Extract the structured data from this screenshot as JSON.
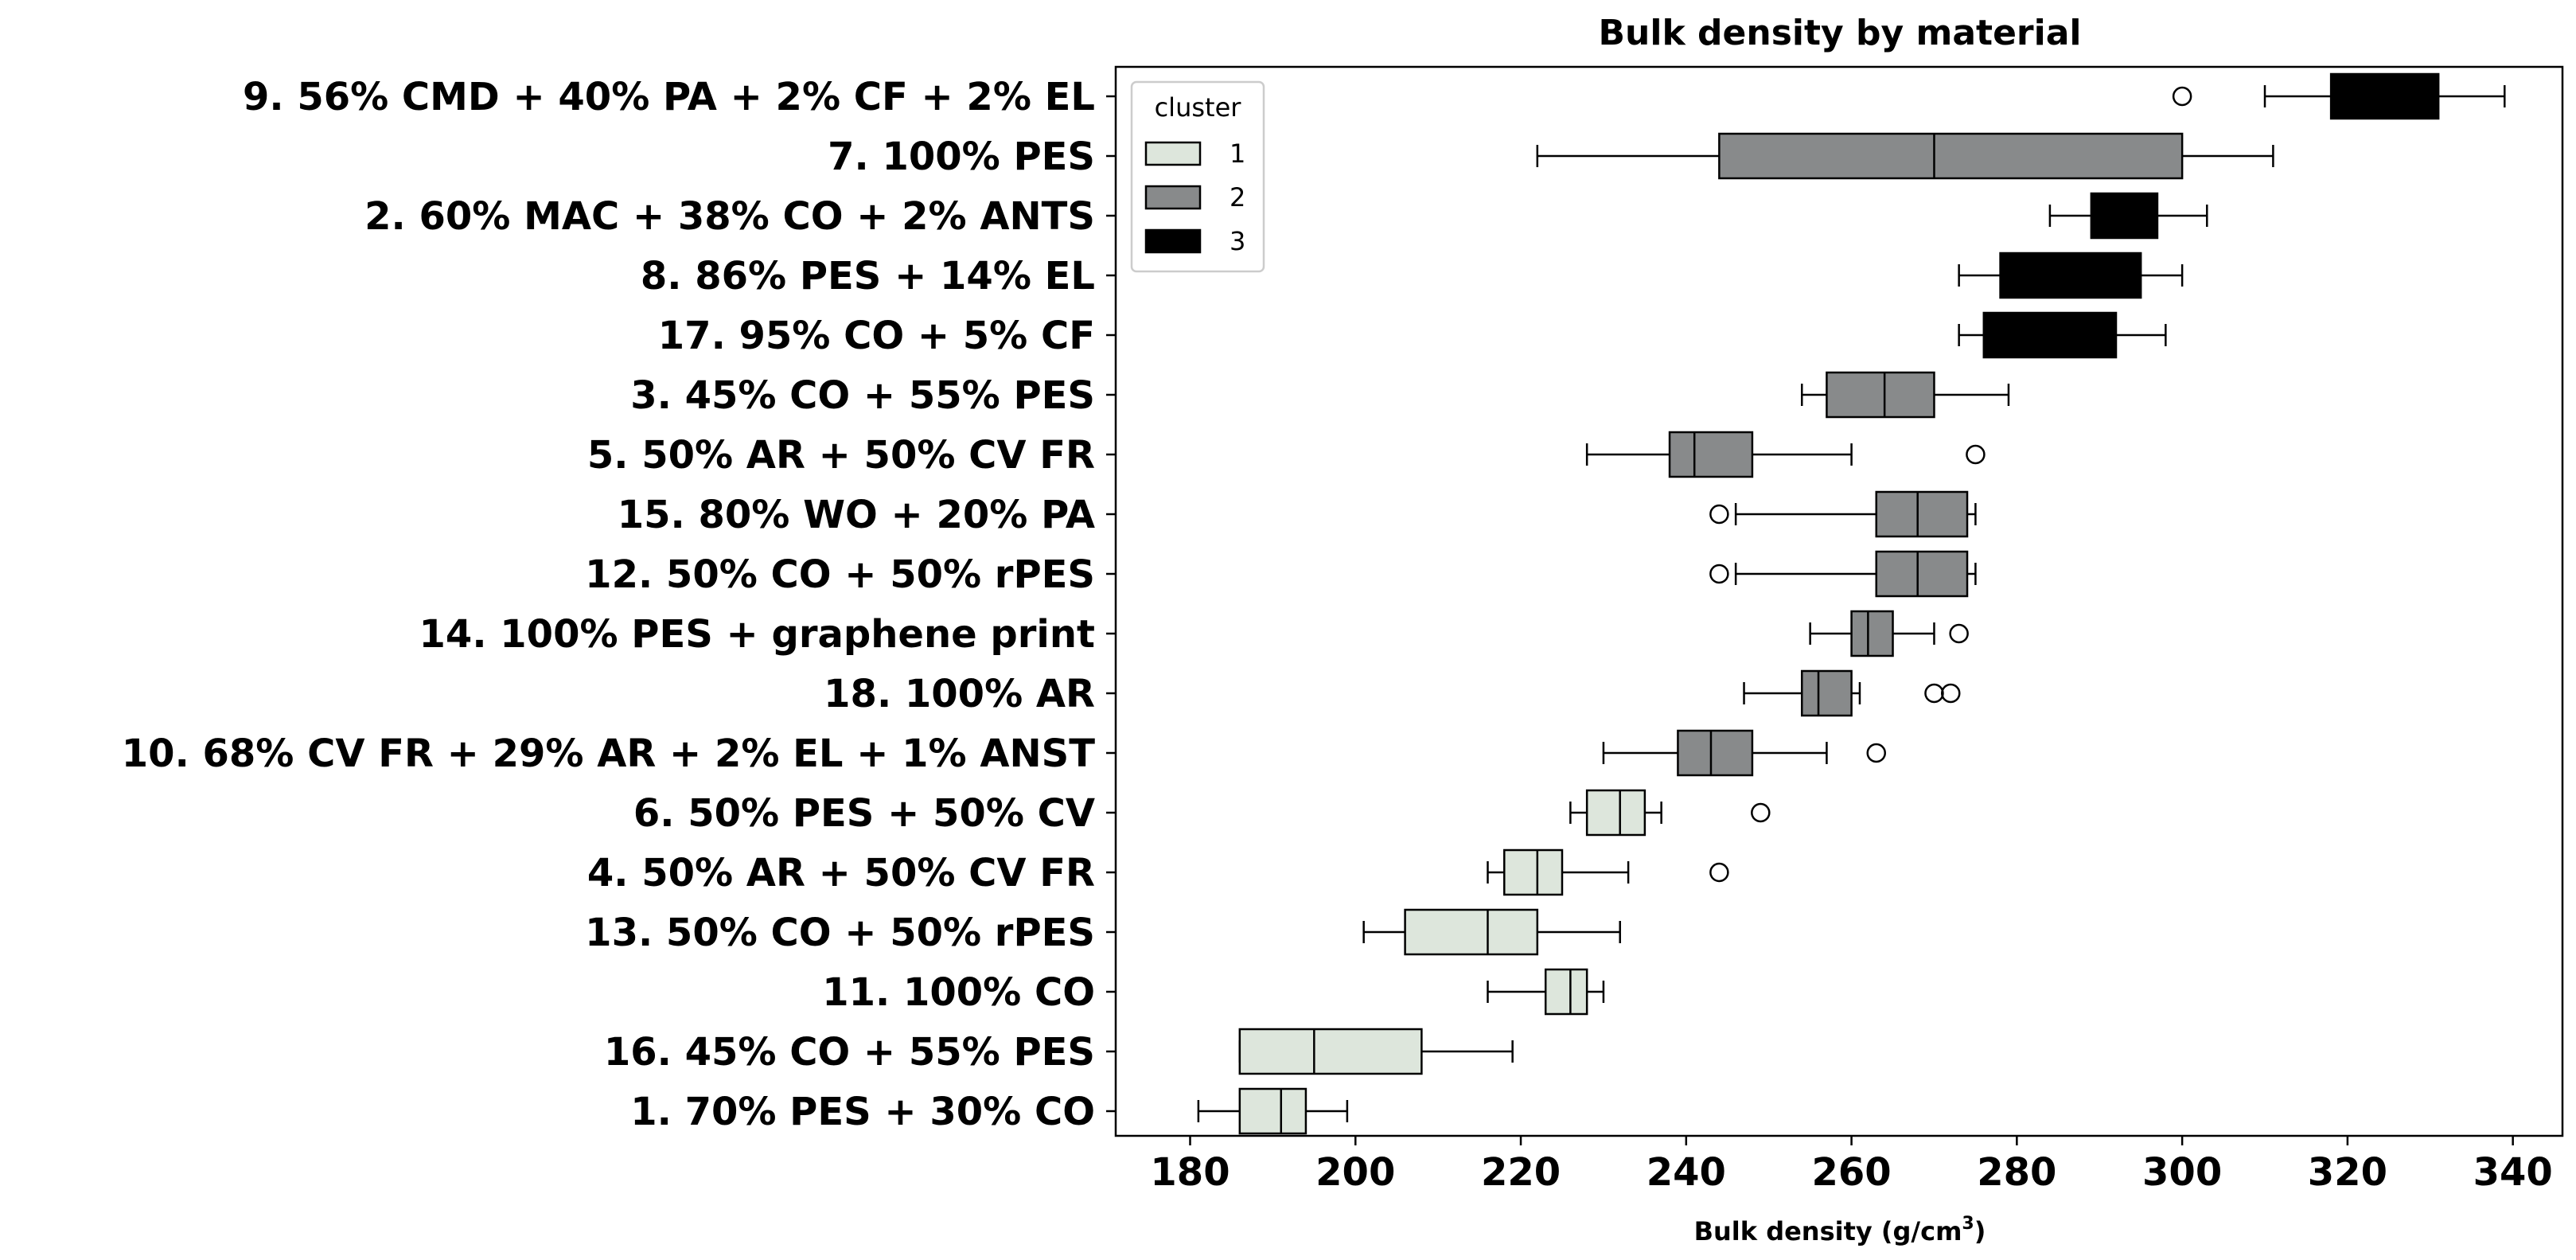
{
  "chart_data": {
    "type": "box",
    "title": "Bulk density by material",
    "xlabel": "Bulk density  (g/cm",
    "xlabel_sup": "3",
    "xlabel_close": ")",
    "xlim": [
      171,
      346
    ],
    "xticks": [
      180,
      200,
      220,
      240,
      260,
      280,
      300,
      320,
      340
    ],
    "legend": {
      "title": "cluster",
      "position": "upper-left",
      "entries": [
        {
          "label": "1",
          "color": "#dde6dc"
        },
        {
          "label": "2",
          "color": "#888a8b"
        },
        {
          "label": "3",
          "color": "#000000"
        }
      ]
    },
    "series": [
      {
        "label": "9. 56% CMD + 40% PA + 2% CF + 2% EL",
        "cluster": 3,
        "whisker_low": 310,
        "q1": 318,
        "median": 325,
        "q3": 331,
        "whisker_high": 339,
        "outliers": [
          300
        ]
      },
      {
        "label": "7. 100% PES",
        "cluster": 2,
        "whisker_low": 222,
        "q1": 244,
        "median": 270,
        "q3": 300,
        "whisker_high": 311,
        "outliers": []
      },
      {
        "label": "2. 60% MAC + 38% CO + 2% ANTS",
        "cluster": 3,
        "whisker_low": 284,
        "q1": 289,
        "median": 293,
        "q3": 297,
        "whisker_high": 303,
        "outliers": []
      },
      {
        "label": "8. 86% PES + 14% EL",
        "cluster": 3,
        "whisker_low": 273,
        "q1": 278,
        "median": 286,
        "q3": 295,
        "whisker_high": 300,
        "outliers": []
      },
      {
        "label": "17. 95% CO + 5% CF",
        "cluster": 3,
        "whisker_low": 273,
        "q1": 276,
        "median": 283,
        "q3": 292,
        "whisker_high": 298,
        "outliers": []
      },
      {
        "label": "3. 45% CO + 55% PES",
        "cluster": 2,
        "whisker_low": 254,
        "q1": 257,
        "median": 264,
        "q3": 270,
        "whisker_high": 279,
        "outliers": []
      },
      {
        "label": "5. 50% AR + 50% CV FR",
        "cluster": 2,
        "whisker_low": 228,
        "q1": 238,
        "median": 241,
        "q3": 248,
        "whisker_high": 260,
        "outliers": [
          275
        ]
      },
      {
        "label": "15. 80% WO + 20% PA",
        "cluster": 2,
        "whisker_low": 246,
        "q1": 263,
        "median": 268,
        "q3": 274,
        "whisker_high": 275,
        "outliers": [
          244
        ]
      },
      {
        "label": "12. 50% CO + 50% rPES",
        "cluster": 2,
        "whisker_low": 246,
        "q1": 263,
        "median": 268,
        "q3": 274,
        "whisker_high": 275,
        "outliers": [
          244
        ]
      },
      {
        "label": "14. 100% PES + graphene print",
        "cluster": 2,
        "whisker_low": 255,
        "q1": 260,
        "median": 262,
        "q3": 265,
        "whisker_high": 270,
        "outliers": [
          273
        ]
      },
      {
        "label": "18. 100% AR",
        "cluster": 2,
        "whisker_low": 247,
        "q1": 254,
        "median": 256,
        "q3": 260,
        "whisker_high": 261,
        "outliers": [
          270,
          272
        ]
      },
      {
        "label": "10. 68% CV FR + 29% AR + 2% EL + 1% ANST",
        "cluster": 2,
        "whisker_low": 230,
        "q1": 239,
        "median": 243,
        "q3": 248,
        "whisker_high": 257,
        "outliers": [
          263
        ]
      },
      {
        "label": "6. 50% PES + 50% CV",
        "cluster": 1,
        "whisker_low": 226,
        "q1": 228,
        "median": 232,
        "q3": 235,
        "whisker_high": 237,
        "outliers": [
          249
        ]
      },
      {
        "label": "4. 50% AR + 50% CV FR",
        "cluster": 1,
        "whisker_low": 216,
        "q1": 218,
        "median": 222,
        "q3": 225,
        "whisker_high": 233,
        "outliers": [
          244
        ]
      },
      {
        "label": "13. 50% CO + 50% rPES",
        "cluster": 1,
        "whisker_low": 201,
        "q1": 206,
        "median": 216,
        "q3": 222,
        "whisker_high": 232,
        "outliers": []
      },
      {
        "label": "11. 100% CO",
        "cluster": 1,
        "whisker_low": 216,
        "q1": 223,
        "median": 226,
        "q3": 228,
        "whisker_high": 230,
        "outliers": []
      },
      {
        "label": "16. 45% CO + 55% PES",
        "cluster": 1,
        "whisker_low": 186,
        "q1": 186,
        "median": 195,
        "q3": 208,
        "whisker_high": 219,
        "outliers": []
      },
      {
        "label": "1. 70% PES + 30% CO",
        "cluster": 1,
        "whisker_low": 181,
        "q1": 186,
        "median": 191,
        "q3": 194,
        "whisker_high": 199,
        "outliers": []
      }
    ]
  }
}
